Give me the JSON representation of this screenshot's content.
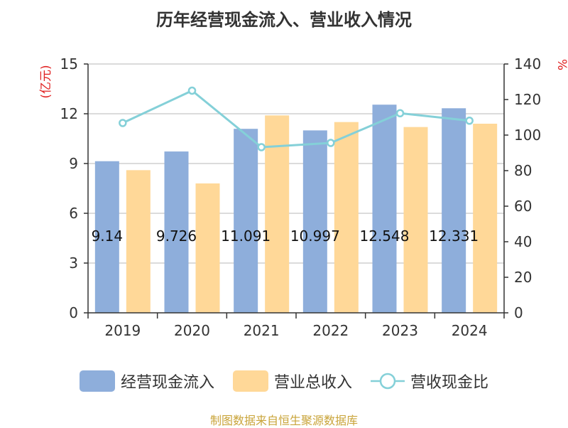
{
  "chart_data": {
    "type": "bar",
    "title": "历年经营现金流入、营业收入情况",
    "categories": [
      "2019",
      "2020",
      "2021",
      "2022",
      "2023",
      "2024"
    ],
    "series": [
      {
        "name": "经营现金流入",
        "type": "bar",
        "axis": "left",
        "color": "#8eaedb",
        "values": [
          9.14,
          9.726,
          11.091,
          10.997,
          12.548,
          12.331
        ],
        "labels": [
          "9.14",
          "9.726",
          "11.091",
          "10.997",
          "12.548",
          "12.331"
        ]
      },
      {
        "name": "营业总收入",
        "type": "bar",
        "axis": "left",
        "color": "#ffd898",
        "values": [
          8.6,
          7.8,
          11.9,
          11.5,
          11.2,
          11.4
        ]
      },
      {
        "name": "营收现金比",
        "type": "line",
        "axis": "right",
        "color": "#84d0d8",
        "values": [
          106.8,
          125.0,
          93.2,
          95.6,
          112.3,
          108.1
        ]
      }
    ],
    "ylabel": "(亿元)",
    "ylim": [
      0,
      15
    ],
    "yticks": [
      "0",
      "3",
      "6",
      "9",
      "12",
      "15"
    ],
    "y2label": "%",
    "y2lim": [
      0,
      140
    ],
    "y2ticks": [
      "0",
      "20",
      "40",
      "60",
      "80",
      "100",
      "120",
      "140"
    ],
    "grid": true,
    "legend": "bottom",
    "source": "制图数据来自恒生聚源数据库"
  }
}
